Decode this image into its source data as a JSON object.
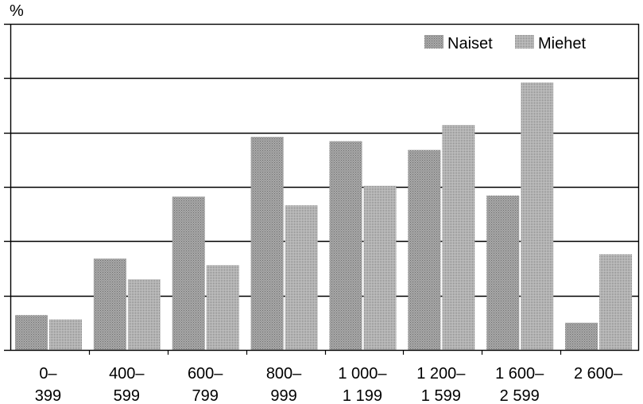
{
  "chart_data": {
    "type": "bar",
    "ylabel": "%",
    "categories": [
      [
        "0–",
        "399"
      ],
      [
        "400–",
        "599"
      ],
      [
        "600–",
        "799"
      ],
      [
        "800–",
        "999"
      ],
      [
        "1 000–",
        "1 199"
      ],
      [
        "1 200–",
        "1 599"
      ],
      [
        "1 600–",
        "2 599"
      ],
      [
        "2 600–",
        ""
      ]
    ],
    "series": [
      {
        "name": "Naiset",
        "color": "#9a9a9a",
        "values": [
          3.2,
          8.4,
          14.1,
          19.6,
          19.2,
          18.4,
          14.2,
          2.5
        ]
      },
      {
        "name": "Miehet",
        "color": "#b4b4b4",
        "values": [
          2.8,
          6.5,
          7.8,
          13.3,
          15.1,
          20.7,
          24.6,
          8.8
        ]
      }
    ],
    "ylim": [
      0,
      30
    ],
    "grid": true,
    "legend_position": "top-right"
  }
}
